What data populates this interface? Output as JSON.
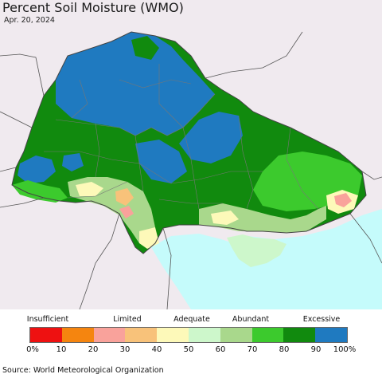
{
  "title": "Percent Soil Moisture (WMO)",
  "date": "Apr. 20, 2024",
  "source": "Source: World Meteorological Organization",
  "legend": {
    "categories": [
      "Insufficient",
      "Limited",
      "Adequate",
      "Abundant",
      "Excessive"
    ],
    "colors": [
      "#ee1111",
      "#f5850f",
      "#f9a29b",
      "#f8c27a",
      "#fdf9b9",
      "#cdf7cb",
      "#a9d88c",
      "#3cca2d",
      "#118a0e",
      "#1f7ac0"
    ],
    "ticks": [
      "0%",
      "10",
      "20",
      "30",
      "40",
      "50",
      "60",
      "70",
      "80",
      "90",
      "100%"
    ]
  },
  "map": {
    "background": "#f0eaef",
    "sea": "#c5fbfb",
    "border": "#555555"
  }
}
